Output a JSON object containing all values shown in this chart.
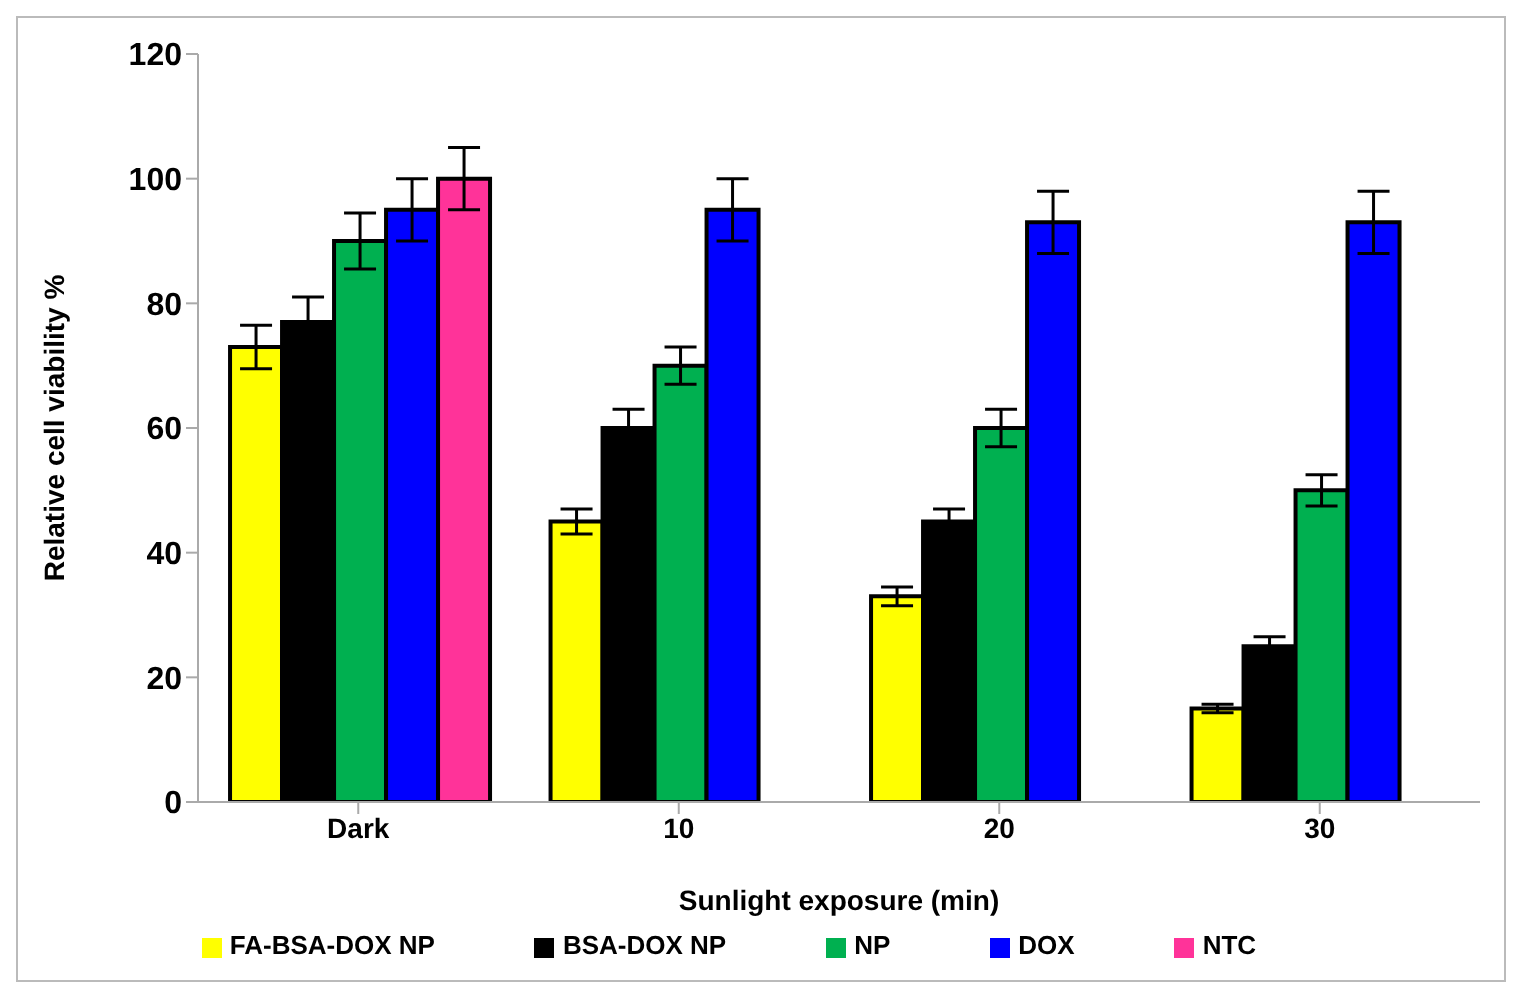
{
  "chart_data": {
    "type": "bar",
    "xlabel": "Sunlight exposure (min)",
    "ylabel": "Relative cell viability %",
    "categories": [
      "Dark",
      "10",
      "20",
      "30"
    ],
    "series": [
      {
        "name": "FA-BSA-DOX NP",
        "color": "#ffff00",
        "values": [
          73,
          45,
          33,
          15
        ],
        "errors": [
          3.5,
          2,
          1.5,
          0.7
        ]
      },
      {
        "name": "BSA-DOX NP",
        "color": "#000000",
        "values": [
          77,
          60,
          45,
          25
        ],
        "errors": [
          4,
          3,
          2,
          1.5
        ]
      },
      {
        "name": "NP",
        "color": "#00b050",
        "values": [
          90,
          70,
          60,
          50
        ],
        "errors": [
          4.5,
          3,
          3,
          2.5
        ]
      },
      {
        "name": "DOX",
        "color": "#0000ff",
        "values": [
          95,
          95,
          93,
          93
        ],
        "errors": [
          5,
          5,
          5,
          5
        ]
      },
      {
        "name": "NTC",
        "color": "#ff3399",
        "values": [
          100,
          null,
          null,
          null
        ],
        "errors": [
          5,
          null,
          null,
          null
        ]
      }
    ],
    "ylim": [
      0,
      120
    ],
    "yticks": [
      0,
      20,
      40,
      60,
      80,
      100,
      120
    ],
    "grid": false,
    "legend": "bottom"
  }
}
